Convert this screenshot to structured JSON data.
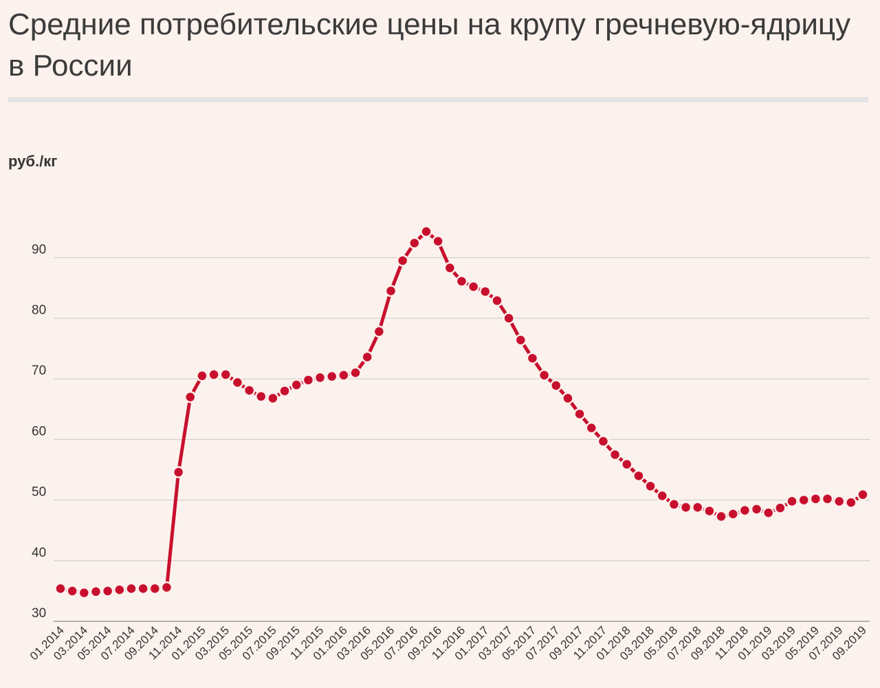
{
  "title": "Средние потребительские цены на крупу гречневую-ядрицу в России",
  "colors": {
    "background": "#fcf2ed",
    "series": "#c8102e",
    "grid": "#c8c8c8",
    "rule": "#e3e3e3"
  },
  "chart_data": {
    "type": "line",
    "title": "Средние потребительские цены на крупу гречневую-ядрицу в России",
    "ylabel": "руб./кг",
    "xlabel": "",
    "ylim": [
      30,
      100
    ],
    "yticks": [
      30,
      40,
      50,
      60,
      70,
      80,
      90
    ],
    "grid": true,
    "legend": "none",
    "x": [
      "01.2014",
      "02.2014",
      "03.2014",
      "04.2014",
      "05.2014",
      "06.2014",
      "07.2014",
      "08.2014",
      "09.2014",
      "10.2014",
      "11.2014",
      "12.2014",
      "01.2015",
      "02.2015",
      "03.2015",
      "04.2015",
      "05.2015",
      "06.2015",
      "07.2015",
      "08.2015",
      "09.2015",
      "10.2015",
      "11.2015",
      "12.2015",
      "01.2016",
      "02.2016",
      "03.2016",
      "04.2016",
      "05.2016",
      "06.2016",
      "07.2016",
      "08.2016",
      "09.2016",
      "10.2016",
      "11.2016",
      "12.2016",
      "01.2017",
      "02.2017",
      "03.2017",
      "04.2017",
      "05.2017",
      "06.2017",
      "07.2017",
      "08.2017",
      "09.2017",
      "10.2017",
      "11.2017",
      "12.2017",
      "01.2018",
      "02.2018",
      "03.2018",
      "04.2018",
      "05.2018",
      "06.2018",
      "07.2018",
      "08.2018",
      "09.2018",
      "10.2018",
      "11.2018",
      "12.2018",
      "01.2019",
      "02.2019",
      "03.2019",
      "04.2019",
      "05.2019",
      "06.2019",
      "07.2019",
      "08.2019",
      "09.2019"
    ],
    "xticklabels": [
      "01.2014",
      "03.2014",
      "05.2014",
      "07.2014",
      "09.2014",
      "11.2014",
      "01.2015",
      "03.2015",
      "05.2015",
      "07.2015",
      "09.2015",
      "11.2015",
      "01.2016",
      "03.2016",
      "05.2016",
      "07.2016",
      "09.2016",
      "11.2016",
      "01.2017",
      "03.2017",
      "05.2017",
      "07.2017",
      "09.2017",
      "11.2017",
      "01.2018",
      "03.2018",
      "05.2018",
      "07.2018",
      "09.2018",
      "11.2018",
      "01.2019",
      "03.2019",
      "05.2019",
      "07.2019",
      "09.2019"
    ],
    "series": [
      {
        "values": [
          35.4,
          35.0,
          34.7,
          34.9,
          35.0,
          35.2,
          35.4,
          35.4,
          35.4,
          35.6,
          54.6,
          67.0,
          70.5,
          70.7,
          70.7,
          69.4,
          68.1,
          67.1,
          66.8,
          68.0,
          69.0,
          69.8,
          70.2,
          70.4,
          70.6,
          71.0,
          73.6,
          77.8,
          84.5,
          89.5,
          92.4,
          94.3,
          92.7,
          88.3,
          86.1,
          85.2,
          84.4,
          82.9,
          80.0,
          76.4,
          73.4,
          70.6,
          68.9,
          66.8,
          64.2,
          61.9,
          59.7,
          57.5,
          55.9,
          54.0,
          52.3,
          50.7,
          49.3,
          48.8,
          48.8,
          48.2,
          47.3,
          47.7,
          48.3,
          48.5,
          47.9,
          48.7,
          49.8,
          50.0,
          50.2,
          50.2,
          49.8,
          49.6,
          50.9
        ]
      }
    ]
  }
}
